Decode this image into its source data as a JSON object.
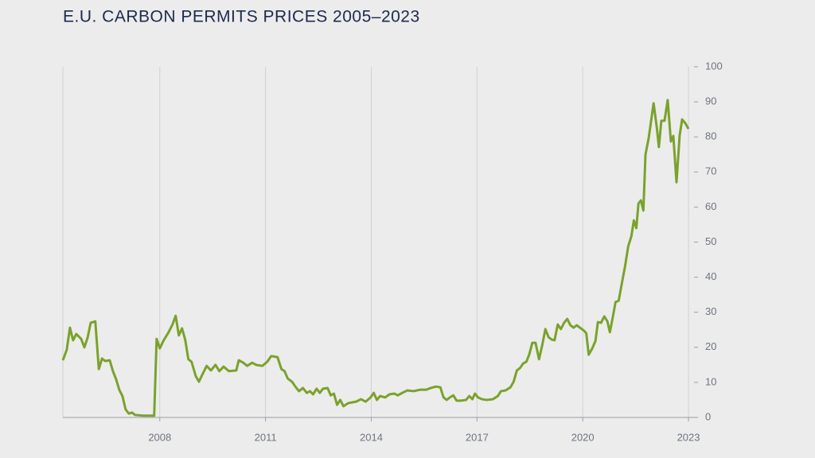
{
  "chart_data": {
    "type": "line",
    "title": "E.U. CARBON PERMITS PRICES 2005–2023",
    "color": "#7aa22c",
    "grid": true,
    "y_axis_side": "right",
    "xlim": [
      2005.25,
      2023.27
    ],
    "xticks": [
      2008,
      2011,
      2014,
      2017,
      2020,
      2023
    ],
    "ylim": [
      0,
      100
    ],
    "yticks": [
      0,
      10,
      20,
      30,
      40,
      50,
      60,
      70,
      80,
      90,
      100
    ],
    "x": [
      2005.25,
      2005.36,
      2005.45,
      2005.54,
      2005.63,
      2005.77,
      2005.86,
      2005.95,
      2006.04,
      2006.17,
      2006.27,
      2006.36,
      2006.45,
      2006.58,
      2006.67,
      2006.76,
      2006.85,
      2006.94,
      2007.03,
      2007.12,
      2007.21,
      2007.3,
      2007.53,
      2007.84,
      2007.91,
      2008.0,
      2008.11,
      2008.25,
      2008.36,
      2008.45,
      2008.54,
      2008.63,
      2008.72,
      2008.81,
      2008.9,
      2009.02,
      2009.11,
      2009.22,
      2009.33,
      2009.45,
      2009.58,
      2009.69,
      2009.81,
      2009.96,
      2010.17,
      2010.24,
      2010.37,
      2010.48,
      2010.62,
      2010.73,
      2010.91,
      2011.05,
      2011.16,
      2011.34,
      2011.45,
      2011.54,
      2011.63,
      2011.75,
      2011.86,
      2011.95,
      2012.06,
      2012.17,
      2012.26,
      2012.35,
      2012.45,
      2012.54,
      2012.63,
      2012.76,
      2012.85,
      2012.94,
      2013.03,
      2013.12,
      2013.21,
      2013.35,
      2013.57,
      2013.71,
      2013.84,
      2013.98,
      2014.07,
      2014.16,
      2014.25,
      2014.39,
      2014.52,
      2014.66,
      2014.75,
      2014.88,
      2015.02,
      2015.2,
      2015.38,
      2015.56,
      2015.69,
      2015.83,
      2015.96,
      2016.05,
      2016.14,
      2016.23,
      2016.33,
      2016.42,
      2016.55,
      2016.69,
      2016.78,
      2016.87,
      2016.94,
      2017.03,
      2017.14,
      2017.27,
      2017.45,
      2017.59,
      2017.68,
      2017.81,
      2017.95,
      2018.04,
      2018.13,
      2018.22,
      2018.31,
      2018.4,
      2018.48,
      2018.57,
      2018.66,
      2018.76,
      2018.85,
      2018.94,
      2019.03,
      2019.12,
      2019.2,
      2019.29,
      2019.38,
      2019.47,
      2019.56,
      2019.65,
      2019.74,
      2019.83,
      2019.92,
      2020.04,
      2020.1,
      2020.17,
      2020.27,
      2020.36,
      2020.43,
      2020.52,
      2020.61,
      2020.7,
      2020.77,
      2020.86,
      2020.93,
      2021.02,
      2021.11,
      2021.2,
      2021.29,
      2021.38,
      2021.45,
      2021.52,
      2021.58,
      2021.65,
      2021.72,
      2021.78,
      2021.87,
      2022.01,
      2022.1,
      2022.16,
      2022.23,
      2022.32,
      2022.41,
      2022.5,
      2022.57,
      2022.66,
      2022.75,
      2022.82,
      2022.91,
      2023.0
    ],
    "values": [
      16.3,
      19.3,
      25.6,
      22,
      23.8,
      22.4,
      20,
      22.7,
      27,
      27.4,
      13.8,
      16.8,
      16.1,
      16.3,
      13.2,
      10.9,
      7.9,
      6.1,
      2.3,
      1.1,
      1.4,
      0.7,
      0.5,
      0.5,
      22.4,
      19.7,
      22,
      24.3,
      26.5,
      29,
      23.4,
      25.4,
      22.2,
      16.6,
      15.9,
      11.8,
      10.2,
      12.5,
      14.7,
      13.4,
      15,
      13.2,
      14.5,
      13.2,
      13.4,
      16.3,
      15.6,
      14.7,
      15.6,
      15,
      14.7,
      15.9,
      17.5,
      17.2,
      13.8,
      13.2,
      11.1,
      10.2,
      8.6,
      7.5,
      8.4,
      7,
      7.5,
      6.6,
      8.2,
      7,
      8.2,
      8.4,
      6.3,
      6.8,
      3.6,
      5,
      3.2,
      4.1,
      4.5,
      5.2,
      4.5,
      5.7,
      7,
      5,
      6.1,
      5.7,
      6.6,
      6.8,
      6.3,
      7,
      7.7,
      7.5,
      7.9,
      7.9,
      8.4,
      8.8,
      8.6,
      5.7,
      5,
      5.7,
      6.3,
      4.8,
      4.8,
      5,
      6.1,
      5.2,
      6.8,
      5.7,
      5.2,
      5,
      5.2,
      6.1,
      7.5,
      7.7,
      8.6,
      10.2,
      13.4,
      14.1,
      15.4,
      15.9,
      17.9,
      21.3,
      21.3,
      16.6,
      20.6,
      25.2,
      22.9,
      22.2,
      22,
      26.5,
      25.2,
      27,
      28.1,
      26.3,
      25.6,
      26.3,
      25.6,
      24.7,
      24,
      17.9,
      19.7,
      21.8,
      27.2,
      27,
      28.8,
      27.4,
      24.3,
      29,
      32.9,
      33.3,
      38.3,
      43.1,
      48.8,
      51.7,
      56.2,
      54,
      61,
      61.9,
      59,
      75,
      79.6,
      89.6,
      82.8,
      77.1,
      84.6,
      84.6,
      90.5,
      78.7,
      80.3,
      67.1,
      80.5,
      85,
      83.9,
      82.3
    ]
  }
}
